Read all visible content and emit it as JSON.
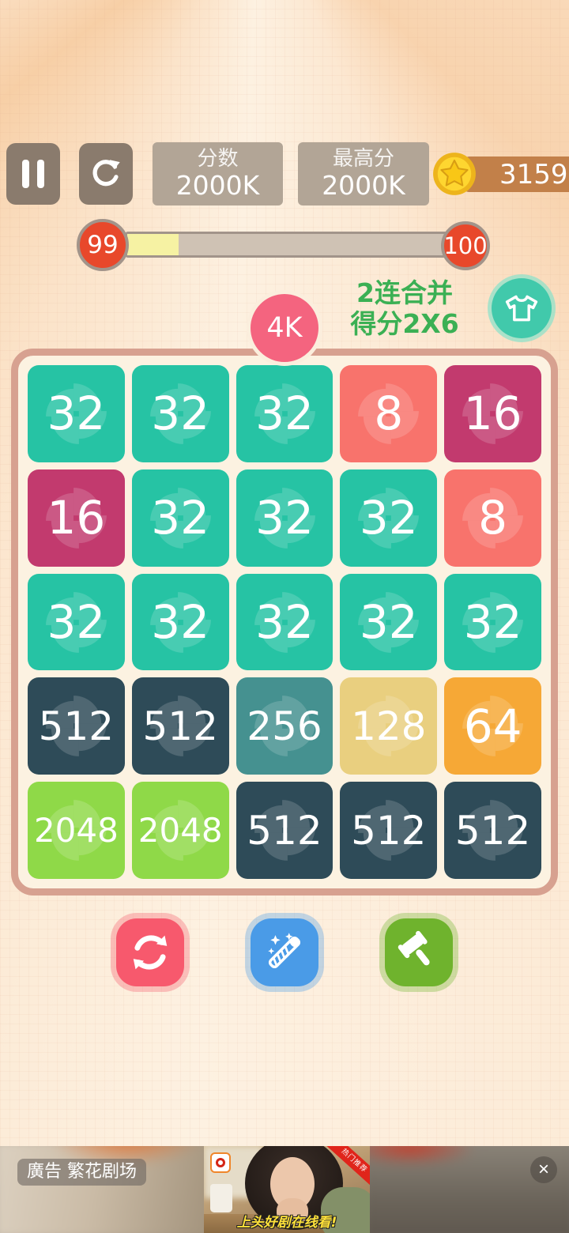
{
  "topbar": {
    "score_label": "分数",
    "score_value": "2000K",
    "best_label": "最高分",
    "best_value": "2000K",
    "coin_count": "3159",
    "coin_bar_color": "#c28049"
  },
  "level_bar": {
    "current_level": "99",
    "next_level": "100",
    "progress_pct": 15,
    "fill_color": "#f6f2a3",
    "circle_color": "#e8482b"
  },
  "combo_hint": {
    "line1": "2连合并",
    "line2": "得分2X6",
    "color": "#3bb054"
  },
  "next_tile_badge": {
    "label": "4K",
    "color": "#f4647f"
  },
  "skin_button": {
    "color": "#41c9ab"
  },
  "board": {
    "rows": [
      [
        "32",
        "32",
        "32",
        "8",
        "16"
      ],
      [
        "16",
        "32",
        "32",
        "32",
        "8"
      ],
      [
        "32",
        "32",
        "32",
        "32",
        "32"
      ],
      [
        "512",
        "512",
        "256",
        "128",
        "64"
      ],
      [
        "2048",
        "2048",
        "512",
        "512",
        "512"
      ]
    ],
    "tile_colors": {
      "8": "#f8736c",
      "16": "#c23a6e",
      "32": "#26c3a4",
      "64": "#f6a836",
      "128": "#e9cf7f",
      "256": "#459190",
      "512": "#2e4b58",
      "2048": "#8fd948"
    }
  },
  "actions": [
    {
      "name": "shuffle",
      "color": "#f7596d"
    },
    {
      "name": "magic-wand",
      "color": "#4a9be7"
    },
    {
      "name": "hammer",
      "color": "#6fb32d"
    }
  ],
  "ad": {
    "label": "廣告 繁花剧场",
    "ribbon": "热门推荐",
    "caption": "上头好剧在线看!",
    "close_glyph": "×"
  }
}
